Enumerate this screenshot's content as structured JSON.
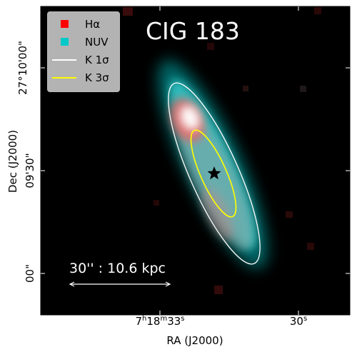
{
  "figure": {
    "title": "CIG 183",
    "xlabel": "RA (J2000)",
    "ylabel": "Dec (J2000)",
    "scalebar": "30'' : 10.6 kpc",
    "x_ticks": [
      {
        "h": "7",
        "m": "18",
        "s": "33",
        "label_html": "7<sup style='font-size:10px'>h</sup>18<sup style='font-size:10px'>m</sup>33<sup style='font-size:10px'>s</sup>"
      },
      {
        "label_html": "30<sup style='font-size:10px'>s</sup>"
      }
    ],
    "y_ticks": [
      "27°10'00\"",
      "09'30\"",
      "00\""
    ],
    "legend": [
      {
        "label": "Hα",
        "kind": "square",
        "color": "#ff0000"
      },
      {
        "label": "NUV",
        "kind": "square",
        "color": "#00c8c8"
      },
      {
        "label": "K 1σ",
        "kind": "line",
        "color": "#ffffff"
      },
      {
        "label": "K 3σ",
        "kind": "line",
        "color": "#ffff00"
      }
    ],
    "colors": {
      "halpha": "#ff0000",
      "nuv": "#00c8c8",
      "k1": "#ffffff",
      "k3": "#ffff00",
      "background": "#000000"
    }
  }
}
